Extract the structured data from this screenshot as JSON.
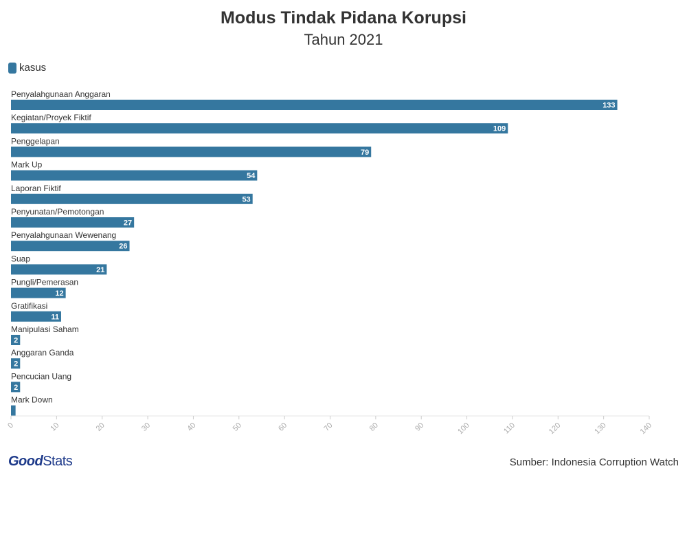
{
  "chart_data": {
    "type": "bar",
    "orientation": "horizontal",
    "title": "Modus Tindak Pidana Korupsi",
    "subtitle": "Tahun 2021",
    "legend": {
      "position": "top-left"
    },
    "categories": [
      "Penyalahgunaan Anggaran",
      "Kegiatan/Proyek Fiktif",
      "Penggelapan",
      "Mark Up",
      "Laporan Fiktif",
      "Penyunatan/Pemotongan",
      "Penyalahgunaan Wewenang",
      "Suap",
      "Pungli/Pemerasan",
      "Gratifikasi",
      "Manipulasi Saham",
      "Anggaran Ganda",
      "Pencucian Uang",
      "Mark Down"
    ],
    "series": [
      {
        "name": "kasus",
        "color": "#35779f",
        "values": [
          133,
          109,
          79,
          54,
          53,
          27,
          26,
          21,
          12,
          11,
          2,
          2,
          2,
          1
        ],
        "labels": [
          "133",
          "109",
          "79",
          "54",
          "53",
          "27",
          "26",
          "21",
          "12",
          "11",
          "2",
          "2",
          "2",
          ""
        ]
      }
    ],
    "xlim": [
      0,
      140
    ],
    "xticks": [
      0,
      10,
      20,
      30,
      40,
      50,
      60,
      70,
      80,
      90,
      100,
      110,
      120,
      130,
      140
    ],
    "grid": false
  },
  "footer": {
    "logo_good": "Good",
    "logo_stats": "Stats",
    "source": "Sumber: Indonesia Corruption Watch"
  }
}
